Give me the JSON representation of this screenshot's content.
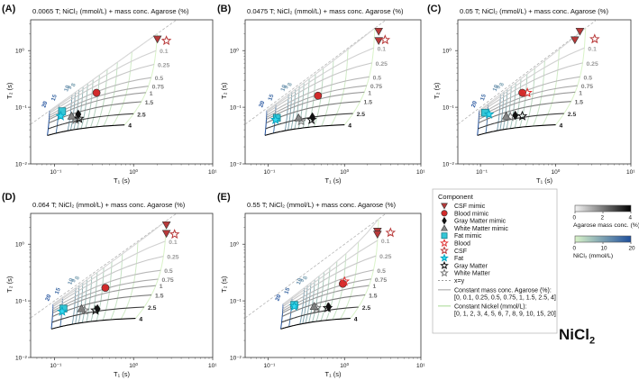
{
  "figure": {
    "suptext": "NiCl",
    "suptext_sub": "2"
  },
  "legend": {
    "title": "Component",
    "items": [
      {
        "label": "CSF mimic",
        "marker": "triangle-down",
        "color": "#b83a3a",
        "filled": true
      },
      {
        "label": "Blood mimic",
        "marker": "circle",
        "color": "#d22b2b",
        "filled": true
      },
      {
        "label": "Gray Matter mimic",
        "marker": "diamond",
        "color": "#111111",
        "filled": true
      },
      {
        "label": "White Matter mimic",
        "marker": "triangle-up",
        "color": "#888888",
        "filled": true
      },
      {
        "label": "Fat mimic",
        "marker": "square",
        "color": "#35c6d6",
        "filled": true
      },
      {
        "label": "Blood",
        "marker": "star",
        "color": "#e03030",
        "filled": false
      },
      {
        "label": "CSF",
        "marker": "star",
        "color": "#b83a3a",
        "filled": false
      },
      {
        "label": "Fat",
        "marker": "star",
        "color": "#35d8f0",
        "filled": true
      },
      {
        "label": "Gray Matter",
        "marker": "star",
        "color": "#111111",
        "filled": false
      },
      {
        "label": "White Matter",
        "marker": "star",
        "color": "#777777",
        "filled": false
      },
      {
        "label": "x=y",
        "marker": "dash",
        "color": "#999999",
        "filled": false
      }
    ],
    "agarose_lines_label": "Constant mass conc. Agarose (%):",
    "agarose_lines_values": "[0, 0.1, 0.25, 0.5, 0.75, 1, 1.5, 2.5, 4]",
    "nickel_lines_label": "Constant Nickel (mmol/L):",
    "nickel_lines_values": "[0, 1, 2, 3, 4, 5, 6, 7, 8, 9, 10, 15, 20]"
  },
  "colorbars": [
    {
      "label": "Agarose mass conc. (%)",
      "ticks": [
        "0",
        "2",
        "4"
      ],
      "from": "#f4f4f4",
      "to": "#000000"
    },
    {
      "label": "NiCl₂ (mmol/L)",
      "ticks": [
        "0",
        "10",
        "20"
      ],
      "from": "#d9f3c8",
      "to": "#1f4f9c"
    }
  ],
  "chart_data": [
    {
      "panel": "(A)",
      "type": "scatter",
      "title": "0.0065 T;  NiCl₂ (mmol/L) + mass conc. Agarose (%)",
      "xlabel": "T₁ (s)",
      "ylabel": "T₂ (s)",
      "xscale": "log",
      "yscale": "log",
      "xlim": [
        0.05,
        10
      ],
      "ylim": [
        0.01,
        3.5
      ],
      "xticks": [
        "10⁻¹",
        "10⁰",
        "10¹"
      ],
      "yticks": [
        "10⁻²",
        "10⁻¹",
        "10⁰"
      ],
      "grid": {
        "T1_0": 2.0,
        "R1_agarose": 0.2,
        "R1_nickel": 0.55,
        "R2_agarose": 5.0,
        "R2_nickel": 0.55
      },
      "agarose_curve_labels": [
        "0.1",
        "0.25",
        "0.5",
        "0.75",
        "1",
        "1.5",
        "2.5",
        "4"
      ],
      "nickel_curve_labels": [
        "20",
        "15",
        "10",
        "9",
        "8"
      ],
      "points": [
        {
          "component": "CSF mimic",
          "t1": 2.0,
          "t2": 1.6
        },
        {
          "component": "CSF",
          "t1": 2.6,
          "t2": 1.5
        },
        {
          "component": "Blood mimic",
          "t1": 0.34,
          "t2": 0.18
        },
        {
          "component": "Fat mimic",
          "t1": 0.125,
          "t2": 0.085
        },
        {
          "component": "Fat",
          "t1": 0.12,
          "t2": 0.07
        },
        {
          "component": "White Matter mimic",
          "t1": 0.165,
          "t2": 0.07
        },
        {
          "component": "White Matter",
          "t1": 0.185,
          "t2": 0.06
        },
        {
          "component": "Gray Matter mimic",
          "t1": 0.2,
          "t2": 0.075
        },
        {
          "component": "Gray Matter",
          "t1": 0.205,
          "t2": 0.063
        }
      ]
    },
    {
      "panel": "(B)",
      "type": "scatter",
      "title": "0.0475 T;  NiCl₂ (mmol/L) + mass conc. Agarose (%)",
      "xlabel": "T₁ (s)",
      "ylabel": "T₂ (s)",
      "xscale": "log",
      "yscale": "log",
      "xlim": [
        0.05,
        10
      ],
      "ylim": [
        0.01,
        3.5
      ],
      "xticks": [
        "10⁻¹",
        "10⁰",
        "10¹"
      ],
      "yticks": [
        "10⁻²",
        "10⁻¹",
        "10⁰"
      ],
      "grid": {
        "T1_0": 2.5,
        "R1_agarose": 0.15,
        "R1_nickel": 0.5,
        "R2_agarose": 5.0,
        "R2_nickel": 0.55
      },
      "agarose_curve_labels": [
        "0.1",
        "0.25",
        "0.5",
        "0.75",
        "1",
        "1.5",
        "2.5",
        "4"
      ],
      "nickel_curve_labels": [
        "20",
        "15",
        "10",
        "9",
        "8"
      ],
      "points": [
        {
          "component": "CSF mimic",
          "t1": 2.8,
          "t2": 2.2
        },
        {
          "component": "CSF mimic",
          "t1": 2.8,
          "t2": 1.5
        },
        {
          "component": "CSF",
          "t1": 3.4,
          "t2": 1.55
        },
        {
          "component": "Blood mimic",
          "t1": 0.45,
          "t2": 0.16
        },
        {
          "component": "Fat mimic",
          "t1": 0.13,
          "t2": 0.065
        },
        {
          "component": "Fat",
          "t1": 0.125,
          "t2": 0.06
        },
        {
          "component": "White Matter mimic",
          "t1": 0.25,
          "t2": 0.065
        },
        {
          "component": "White Matter",
          "t1": 0.27,
          "t2": 0.057
        },
        {
          "component": "Gray Matter mimic",
          "t1": 0.38,
          "t2": 0.067
        },
        {
          "component": "Gray Matter",
          "t1": 0.37,
          "t2": 0.06
        }
      ]
    },
    {
      "panel": "(C)",
      "type": "scatter",
      "title": "0.05 T;  NiCl₂ (mmol/L) + mass conc. Agarose (%)",
      "xlabel": "T₁ (s)",
      "ylabel": "T₂ (s)",
      "xscale": "log",
      "yscale": "log",
      "xlim": [
        0.05,
        10
      ],
      "ylim": [
        0.01,
        3.5
      ],
      "xticks": [
        "10⁻¹",
        "10⁰",
        "10¹"
      ],
      "yticks": [
        "10⁻²",
        "10⁻¹",
        "10⁰"
      ],
      "grid": {
        "T1_0": 2.5,
        "R1_agarose": 0.15,
        "R1_nickel": 0.5,
        "R2_agarose": 5.0,
        "R2_nickel": 0.55
      },
      "agarose_curve_labels": [
        "0.1",
        "0.25",
        "0.5",
        "0.75",
        "1",
        "1.5",
        "2.5",
        "4"
      ],
      "nickel_curve_labels": [
        "20",
        "15",
        "10",
        "9",
        "8"
      ],
      "points": [
        {
          "component": "CSF mimic",
          "t1": 2.1,
          "t2": 2.2
        },
        {
          "component": "CSF mimic",
          "t1": 1.8,
          "t2": 1.55
        },
        {
          "component": "CSF",
          "t1": 3.3,
          "t2": 1.6
        },
        {
          "component": "Blood mimic",
          "t1": 0.36,
          "t2": 0.18
        },
        {
          "component": "Blood",
          "t1": 0.42,
          "t2": 0.18
        },
        {
          "component": "Fat mimic",
          "t1": 0.115,
          "t2": 0.08
        },
        {
          "component": "Fat",
          "t1": 0.13,
          "t2": 0.075
        },
        {
          "component": "White Matter mimic",
          "t1": 0.22,
          "t2": 0.07
        },
        {
          "component": "White Matter",
          "t1": 0.25,
          "t2": 0.068
        },
        {
          "component": "Gray Matter mimic",
          "t1": 0.29,
          "t2": 0.072
        },
        {
          "component": "Gray Matter",
          "t1": 0.36,
          "t2": 0.07
        }
      ]
    },
    {
      "panel": "(D)",
      "type": "scatter",
      "title": "0.064 T;  NiCl₂ (mmol/L) + mass conc. Agarose (%)",
      "xlabel": "T₁ (s)",
      "ylabel": "T₂ (s)",
      "xscale": "log",
      "yscale": "log",
      "xlim": [
        0.05,
        10
      ],
      "ylim": [
        0.01,
        3.5
      ],
      "xticks": [
        "10⁻¹",
        "10⁰",
        "10¹"
      ],
      "yticks": [
        "10⁻²",
        "10⁻¹",
        "10⁰"
      ],
      "grid": {
        "T1_0": 2.6,
        "R1_agarose": 0.14,
        "R1_nickel": 0.5,
        "R2_agarose": 5.0,
        "R2_nickel": 0.55
      },
      "agarose_curve_labels": [
        "0.1",
        "0.25",
        "0.5",
        "0.75",
        "1",
        "1.5",
        "2.5",
        "4"
      ],
      "nickel_curve_labels": [
        "20",
        "15",
        "10",
        "9",
        "8"
      ],
      "points": [
        {
          "component": "CSF mimic",
          "t1": 2.6,
          "t2": 2.2
        },
        {
          "component": "CSF mimic",
          "t1": 2.6,
          "t2": 1.55
        },
        {
          "component": "CSF",
          "t1": 3.3,
          "t2": 1.5
        },
        {
          "component": "Blood mimic",
          "t1": 0.44,
          "t2": 0.17
        },
        {
          "component": "Fat mimic",
          "t1": 0.13,
          "t2": 0.073
        },
        {
          "component": "Fat",
          "t1": 0.125,
          "t2": 0.065
        },
        {
          "component": "White Matter mimic",
          "t1": 0.22,
          "t2": 0.073
        },
        {
          "component": "White Matter",
          "t1": 0.24,
          "t2": 0.068
        },
        {
          "component": "Gray Matter mimic",
          "t1": 0.35,
          "t2": 0.072
        },
        {
          "component": "Gray Matter",
          "t1": 0.33,
          "t2": 0.068
        }
      ]
    },
    {
      "panel": "(E)",
      "type": "scatter",
      "title": "0.55 T;  NiCl₂ (mmol/L) + mass conc. Agarose (%)",
      "xlabel": "T₁ (s)",
      "ylabel": "T₂ (s)",
      "xscale": "log",
      "yscale": "log",
      "xlim": [
        0.05,
        10
      ],
      "ylim": [
        0.01,
        3.5
      ],
      "xticks": [
        "10⁻¹",
        "10⁰",
        "10¹"
      ],
      "yticks": [
        "10⁻²",
        "10⁻¹",
        "10⁰"
      ],
      "grid": {
        "T1_0": 2.8,
        "R1_agarose": 0.12,
        "R1_nickel": 0.3,
        "R2_agarose": 5.0,
        "R2_nickel": 0.55
      },
      "agarose_curve_labels": [
        "0.1",
        "0.25",
        "0.5",
        "0.75",
        "1",
        "1.5",
        "2.5",
        "4"
      ],
      "nickel_curve_labels": [
        "20",
        "15",
        "10",
        "9",
        "8"
      ],
      "points": [
        {
          "component": "CSF mimic",
          "t1": 2.7,
          "t2": 1.7
        },
        {
          "component": "CSF mimic",
          "t1": 2.7,
          "t2": 1.5
        },
        {
          "component": "CSF",
          "t1": 4.0,
          "t2": 1.6
        },
        {
          "component": "Blood mimic",
          "t1": 0.95,
          "t2": 0.2
        },
        {
          "component": "Blood",
          "t1": 1.0,
          "t2": 0.22
        },
        {
          "component": "Fat mimic",
          "t1": 0.22,
          "t2": 0.085
        },
        {
          "component": "Fat",
          "t1": 0.22,
          "t2": 0.08
        },
        {
          "component": "White Matter mimic",
          "t1": 0.4,
          "t2": 0.08
        },
        {
          "component": "White Matter",
          "t1": 0.43,
          "t2": 0.075
        },
        {
          "component": "Gray Matter mimic",
          "t1": 0.62,
          "t2": 0.078
        },
        {
          "component": "Gray Matter",
          "t1": 0.6,
          "t2": 0.075
        }
      ]
    }
  ]
}
